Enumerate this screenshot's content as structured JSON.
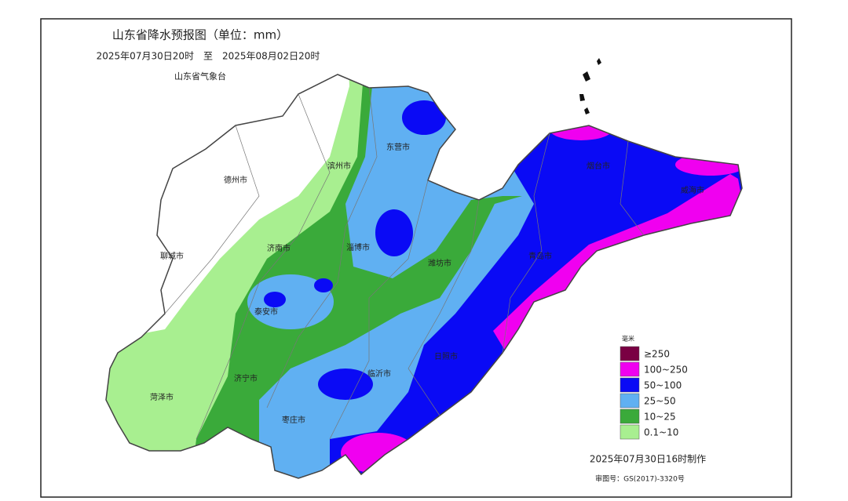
{
  "header": {
    "title": "山东省降水预报图（单位：mm）",
    "period": "2025年07月30日20时　至　2025年08月02日20时",
    "agency": "山东省气象台"
  },
  "cities": [
    "德州市",
    "滨州市",
    "东营市",
    "烟台市",
    "威海市",
    "聊城市",
    "济南市",
    "淄博市",
    "潍坊市",
    "青岛市",
    "泰安市",
    "日照市",
    "临沂市",
    "济宁市",
    "菏泽市",
    "枣庄市"
  ],
  "legend": {
    "title": "毫米",
    "items": [
      {
        "label": "≥250",
        "color": "#7a0043"
      },
      {
        "label": "100~250",
        "color": "#f000f0"
      },
      {
        "label": "50~100",
        "color": "#0a0af5"
      },
      {
        "label": "25~50",
        "color": "#60b0f2"
      },
      {
        "label": "10~25",
        "color": "#3aaa3a"
      },
      {
        "label": "0.1~10",
        "color": "#a8ef90"
      }
    ]
  },
  "footer": {
    "made": "2025年07月30日16时制作",
    "review": "审图号：GS(2017)-3320号"
  }
}
